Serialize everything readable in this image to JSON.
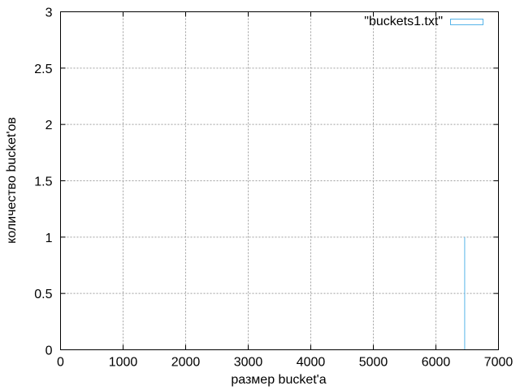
{
  "chart_data": {
    "type": "bar",
    "title": "",
    "xlabel": "размер bucket'a",
    "ylabel": "количество bucket'ов",
    "xlim": [
      0,
      7000
    ],
    "ylim": [
      0,
      3
    ],
    "xticks": [
      0,
      1000,
      2000,
      3000,
      4000,
      5000,
      6000,
      7000
    ],
    "xtick_labels": [
      "0",
      "1000",
      "2000",
      "3000",
      "4000",
      "5000",
      "6000",
      "7000"
    ],
    "yticks": [
      0,
      0.5,
      1,
      1.5,
      2,
      2.5,
      3
    ],
    "ytick_labels": [
      "0",
      "0.5",
      "1",
      "1.5",
      "2",
      "2.5",
      "3"
    ],
    "grid": true,
    "legend_position": "top-right",
    "series": [
      {
        "name": "\"buckets1.txt\"",
        "color": "#56b4e9",
        "points": [
          {
            "x": 6460,
            "y": 1
          }
        ]
      }
    ]
  }
}
